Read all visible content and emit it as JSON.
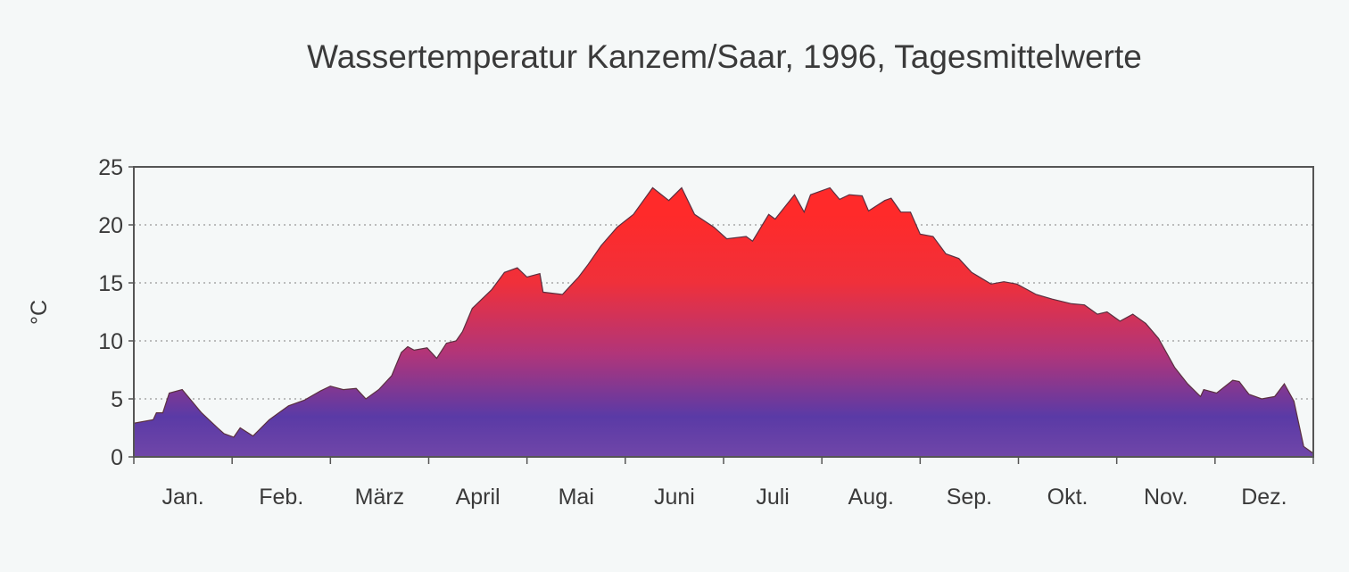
{
  "chart_data": {
    "type": "area",
    "title": "Wassertemperatur Kanzem/Saar, 1996, Tagesmittelwerte",
    "xlabel": "",
    "ylabel": "°C",
    "ylim": [
      0,
      25
    ],
    "yticks": [
      0,
      5,
      10,
      15,
      20,
      25
    ],
    "xlim": [
      0,
      366
    ],
    "month_labels": [
      "Jan.",
      "Feb.",
      "März",
      "April",
      "Mai",
      "Juni",
      "Juli",
      "Aug.",
      "Sep.",
      "Okt.",
      "Nov.",
      "Dez."
    ],
    "grid": "horizontal dotted",
    "colors": {
      "top": "#ff2a2a",
      "mid": "#b0357a",
      "bottom": "#5a3aa6"
    },
    "x_unit": "day of year",
    "x": [
      0,
      6,
      7,
      9,
      11,
      15,
      21,
      26,
      28,
      31,
      33,
      37,
      42,
      45,
      48,
      53,
      58,
      61,
      65,
      69,
      72,
      76,
      80,
      83,
      85,
      87,
      91,
      94,
      97,
      100,
      102,
      105,
      111,
      115,
      119,
      122,
      126,
      127,
      133,
      136,
      138,
      141,
      145,
      150,
      155,
      161,
      166,
      170,
      174,
      180,
      184,
      190,
      192,
      197,
      199,
      205,
      208,
      210,
      216,
      219,
      222,
      226,
      228,
      233,
      235,
      238,
      241,
      244,
      248,
      252,
      256,
      260,
      263,
      266,
      270,
      274,
      280,
      285,
      291,
      295,
      299,
      302,
      306,
      310,
      314,
      318,
      323,
      327,
      331,
      332,
      336,
      341,
      343,
      346,
      350,
      354,
      357,
      360,
      363,
      366
    ],
    "y": [
      2.9,
      3.2,
      3.8,
      3.8,
      5.5,
      5.8,
      3.8,
      2.5,
      2.0,
      1.7,
      2.5,
      1.8,
      3.2,
      3.8,
      4.4,
      4.9,
      5.7,
      6.1,
      5.8,
      5.9,
      5.0,
      5.8,
      7.0,
      9.0,
      9.5,
      9.2,
      9.4,
      8.5,
      9.8,
      10.0,
      10.8,
      12.8,
      14.4,
      15.9,
      16.3,
      15.5,
      15.8,
      14.2,
      14.0,
      14.9,
      15.5,
      16.6,
      18.2,
      19.8,
      20.9,
      23.2,
      22.1,
      23.2,
      20.9,
      19.8,
      18.8,
      19.0,
      18.6,
      20.9,
      20.5,
      22.6,
      21.1,
      22.6,
      23.2,
      22.2,
      22.6,
      22.5,
      21.2,
      22.1,
      22.3,
      21.1,
      21.1,
      19.2,
      19.0,
      17.5,
      17.1,
      15.9,
      15.4,
      14.9,
      15.1,
      14.9,
      14.0,
      13.6,
      13.2,
      13.1,
      12.3,
      12.5,
      11.7,
      12.3,
      11.5,
      10.2,
      7.7,
      6.3,
      5.2,
      5.8,
      5.5,
      6.6,
      6.5,
      5.4,
      5.0,
      5.2,
      6.3,
      4.8,
      0.9,
      0.3
    ]
  }
}
